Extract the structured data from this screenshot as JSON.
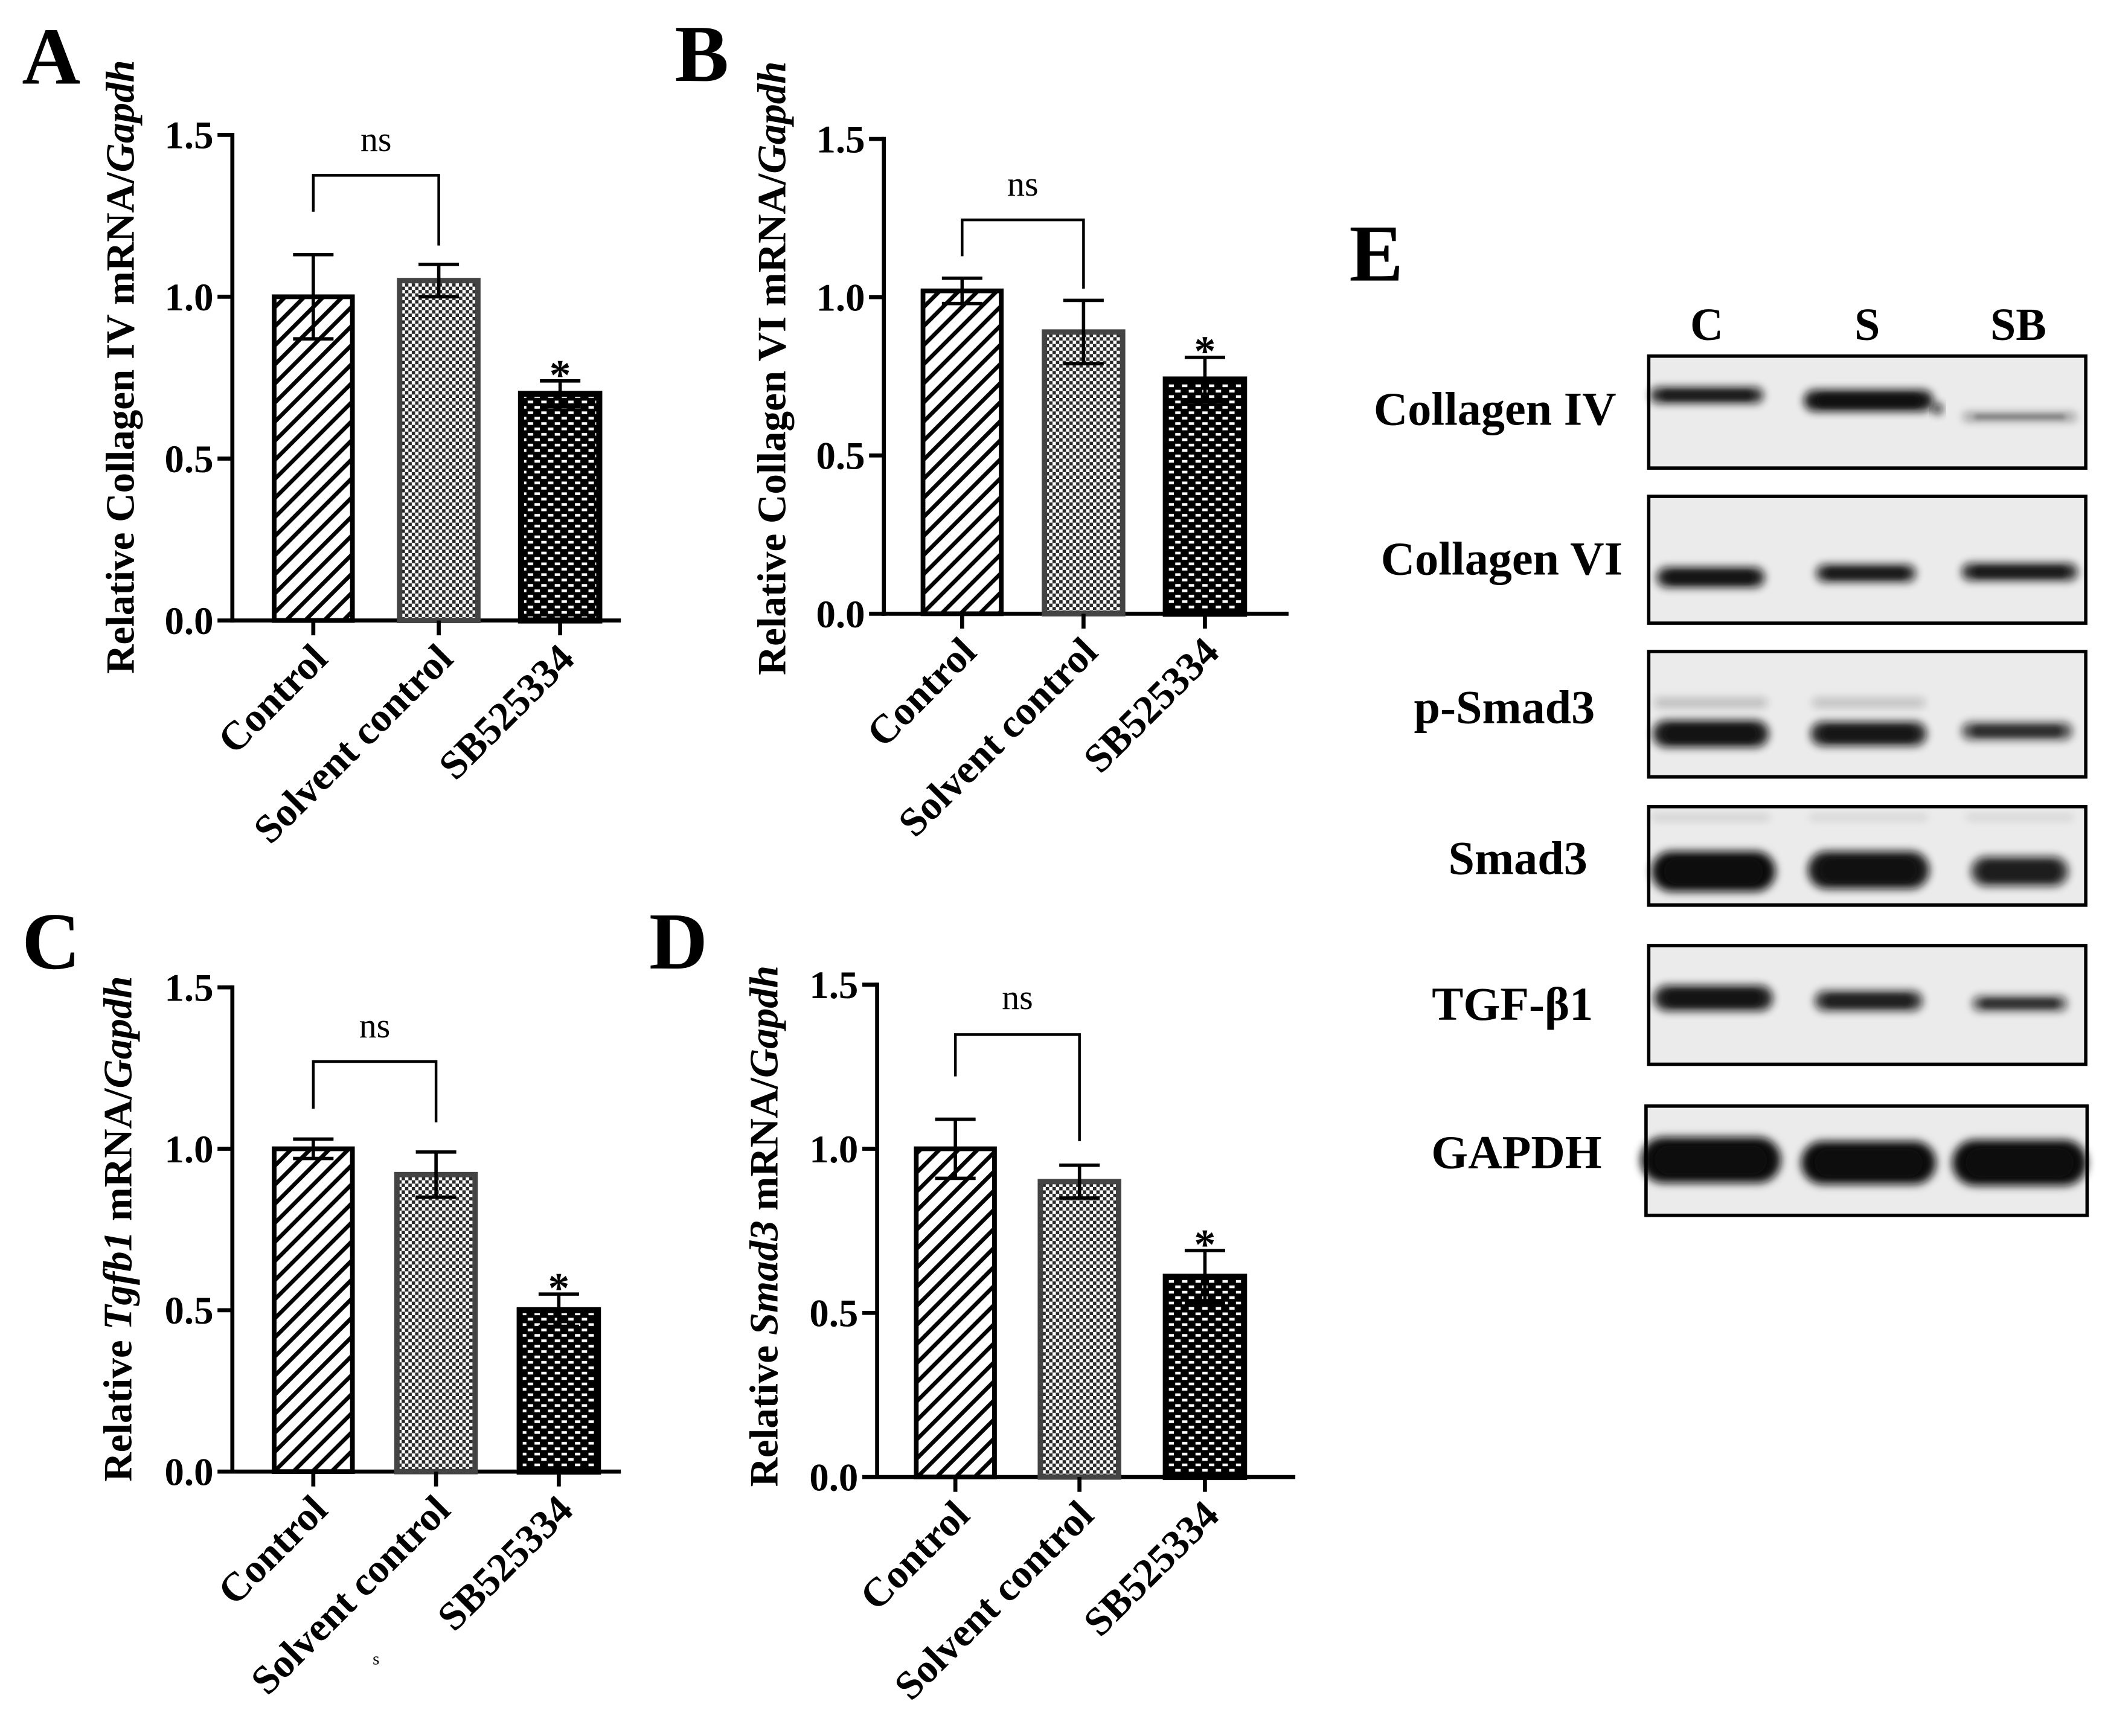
{
  "chart_data": [
    {
      "panel": "A",
      "type": "bar",
      "categories": [
        "Control",
        "Solvent control",
        "SB525334"
      ],
      "values": [
        1.0,
        1.05,
        0.7
      ],
      "error": [
        0.13,
        0.05,
        0.04
      ],
      "ylabel": [
        {
          "text": "Relative Collagen IV mRNA/",
          "italic": false
        },
        {
          "text": "Gapdh",
          "italic": true
        }
      ],
      "ylim": [
        0,
        1.5
      ],
      "yticks": [
        "0.0",
        "0.5",
        "1.0",
        "1.5"
      ],
      "grid": false,
      "brackets": [
        {
          "from": 0,
          "to": 1,
          "label": "ns"
        }
      ],
      "markers": [
        {
          "at": 2,
          "label": "*"
        }
      ]
    },
    {
      "panel": "B",
      "type": "bar",
      "categories": [
        "Control",
        "Solvent control",
        "SB525334"
      ],
      "values": [
        1.02,
        0.89,
        0.74
      ],
      "error": [
        0.04,
        0.1,
        0.07
      ],
      "ylabel": [
        {
          "text": "Relative Collagen VI mRNA/",
          "italic": false
        },
        {
          "text": "Gapdh",
          "italic": true
        }
      ],
      "ylim": [
        0,
        1.5
      ],
      "yticks": [
        "0.0",
        "0.5",
        "1.0",
        "1.5"
      ],
      "grid": false,
      "brackets": [
        {
          "from": 0,
          "to": 1,
          "label": "ns"
        }
      ],
      "markers": [
        {
          "at": 2,
          "label": "*"
        }
      ]
    },
    {
      "panel": "C",
      "type": "bar",
      "categories": [
        "Control",
        "Solvent control",
        "SB525334"
      ],
      "values": [
        1.0,
        0.92,
        0.5
      ],
      "error": [
        0.03,
        0.07,
        0.05
      ],
      "ylabel": [
        {
          "text": "Relative ",
          "italic": false
        },
        {
          "text": "Tgfb1",
          "italic": true
        },
        {
          "text": " mRNA/",
          "italic": false
        },
        {
          "text": "Gapdh",
          "italic": true
        }
      ],
      "ylim": [
        0,
        1.5
      ],
      "yticks": [
        "0.0",
        "0.5",
        "1.0",
        "1.5"
      ],
      "grid": false,
      "brackets": [
        {
          "from": 0,
          "to": 1,
          "label": "ns"
        }
      ],
      "markers": [
        {
          "at": 2,
          "label": "*"
        }
      ],
      "stray_mark": "s"
    },
    {
      "panel": "D",
      "type": "bar",
      "categories": [
        "Control",
        "Solvent control",
        "SB525334"
      ],
      "values": [
        1.0,
        0.9,
        0.61
      ],
      "error": [
        0.09,
        0.05,
        0.08
      ],
      "ylabel": [
        {
          "text": "Relative ",
          "italic": false
        },
        {
          "text": "Smad3",
          "italic": true
        },
        {
          "text": " mRNA/",
          "italic": false
        },
        {
          "text": "Gapdh",
          "italic": true
        }
      ],
      "ylim": [
        0,
        1.5
      ],
      "yticks": [
        "0.0",
        "0.5",
        "1.0",
        "1.5"
      ],
      "grid": false,
      "brackets": [
        {
          "from": 0,
          "to": 1,
          "label": "ns"
        }
      ],
      "markers": [
        {
          "at": 2,
          "label": "*"
        }
      ]
    }
  ],
  "blot": {
    "panel": "E",
    "lanes": [
      "C",
      "S",
      "SB"
    ],
    "rows": [
      {
        "label": "Collagen IV",
        "intensity": [
          0.85,
          0.95,
          0.4
        ]
      },
      {
        "label": "Collagen VI",
        "intensity": [
          0.9,
          0.85,
          0.85
        ]
      },
      {
        "label": "p-Smad3",
        "intensity": [
          0.92,
          0.88,
          0.7
        ]
      },
      {
        "label": "Smad3",
        "intensity": [
          1.0,
          0.95,
          0.82
        ]
      },
      {
        "label": "TGF-β1",
        "intensity": [
          0.9,
          0.8,
          0.7
        ]
      },
      {
        "label": "GAPDH",
        "intensity": [
          1.0,
          1.0,
          1.0
        ]
      }
    ]
  },
  "colors": {
    "axis": "#000000",
    "solvent_outline": "#444444",
    "blot_background": "#ebebeb",
    "band": "#101010"
  }
}
